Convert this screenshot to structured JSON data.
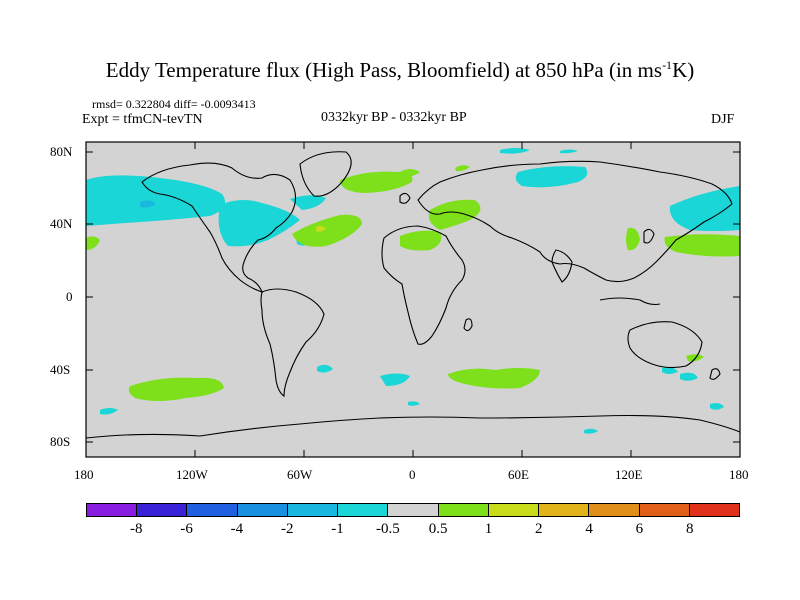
{
  "title": {
    "main": "Eddy Temperature flux (High Pass, Bloomfield) at 850 hPa (in ms",
    "sup": "-1",
    "tail": "K)"
  },
  "stats": "rmsd= 0.322804 diff= -0.0093413",
  "expt": "Expt = tfmCN-tevTN",
  "period": "0332kyr BP - 0332kyr BP",
  "season": "DJF",
  "y_ticks": [
    "80N",
    "40N",
    "0",
    "40S",
    "80S"
  ],
  "x_ticks": [
    "180",
    "120W",
    "60W",
    "0",
    "60E",
    "120E",
    "180"
  ],
  "colorbar": {
    "colors": [
      "#8a1ee0",
      "#3a22d8",
      "#1f5fe0",
      "#1a90e0",
      "#19b8e0",
      "#1ad6d6",
      "#d3d3d3",
      "#7ee01a",
      "#c8dc1a",
      "#e0b41a",
      "#e0901a",
      "#e0601a",
      "#e0321a"
    ],
    "labels": [
      "-8",
      "-6",
      "-4",
      "-2",
      "-1",
      "-0.5",
      "0.5",
      "1",
      "2",
      "4",
      "6",
      "8"
    ]
  },
  "map_colors": {
    "background": "#d3d3d3",
    "positive": "#7ee01a",
    "negative": "#1ad6d6",
    "negative_strong": "#19b8e0",
    "positive_strong": "#c8dc1a"
  }
}
